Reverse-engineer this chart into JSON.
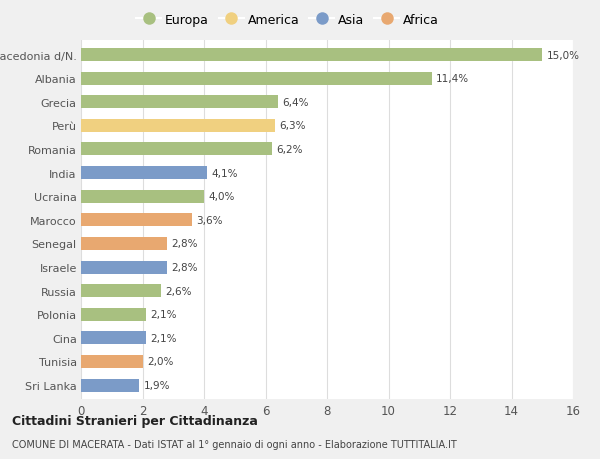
{
  "countries": [
    "Macedonia d/N.",
    "Albania",
    "Grecia",
    "Perù",
    "Romania",
    "India",
    "Ucraina",
    "Marocco",
    "Senegal",
    "Israele",
    "Russia",
    "Polonia",
    "Cina",
    "Tunisia",
    "Sri Lanka"
  ],
  "values": [
    15.0,
    11.4,
    6.4,
    6.3,
    6.2,
    4.1,
    4.0,
    3.6,
    2.8,
    2.8,
    2.6,
    2.1,
    2.1,
    2.0,
    1.9
  ],
  "labels": [
    "15,0%",
    "11,4%",
    "6,4%",
    "6,3%",
    "6,2%",
    "4,1%",
    "4,0%",
    "3,6%",
    "2,8%",
    "2,8%",
    "2,6%",
    "2,1%",
    "2,1%",
    "2,0%",
    "1,9%"
  ],
  "continents": [
    "Europa",
    "Europa",
    "Europa",
    "America",
    "Europa",
    "Asia",
    "Europa",
    "Africa",
    "Africa",
    "Asia",
    "Europa",
    "Europa",
    "Asia",
    "Africa",
    "Asia"
  ],
  "continent_colors": {
    "Europa": "#a8c080",
    "America": "#f0d080",
    "Asia": "#7b9bc8",
    "Africa": "#e8a870"
  },
  "legend_order": [
    "Europa",
    "America",
    "Asia",
    "Africa"
  ],
  "title1": "Cittadini Stranieri per Cittadinanza",
  "title2": "COMUNE DI MACERATA - Dati ISTAT al 1° gennaio di ogni anno - Elaborazione TUTTITALIA.IT",
  "xlim": [
    0,
    16
  ],
  "xticks": [
    0,
    2,
    4,
    6,
    8,
    10,
    12,
    14,
    16
  ],
  "background_color": "#f0f0f0",
  "plot_background_color": "#ffffff",
  "grid_color": "#dddddd",
  "label_color": "#555555",
  "bar_height": 0.55
}
